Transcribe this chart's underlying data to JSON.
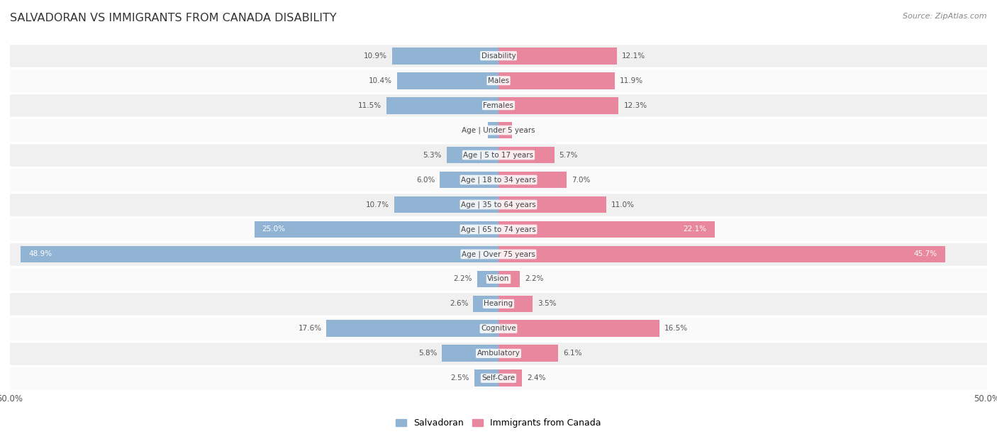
{
  "title": "SALVADORAN VS IMMIGRANTS FROM CANADA DISABILITY",
  "source": "Source: ZipAtlas.com",
  "categories": [
    "Disability",
    "Males",
    "Females",
    "Age | Under 5 years",
    "Age | 5 to 17 years",
    "Age | 18 to 34 years",
    "Age | 35 to 64 years",
    "Age | 65 to 74 years",
    "Age | Over 75 years",
    "Vision",
    "Hearing",
    "Cognitive",
    "Ambulatory",
    "Self-Care"
  ],
  "salvadoran": [
    10.9,
    10.4,
    11.5,
    1.1,
    5.3,
    6.0,
    10.7,
    25.0,
    48.9,
    2.2,
    2.6,
    17.6,
    5.8,
    2.5
  ],
  "canada": [
    12.1,
    11.9,
    12.3,
    1.4,
    5.7,
    7.0,
    11.0,
    22.1,
    45.7,
    2.2,
    3.5,
    16.5,
    6.1,
    2.4
  ],
  "salvadoran_color": "#92b4d4",
  "canada_color": "#e8879e",
  "salvadoran_label": "Salvadoran",
  "canada_label": "Immigrants from Canada",
  "axis_max": 50.0,
  "fig_bg": "#ffffff",
  "row_bg_odd": "#f0f0f0",
  "row_bg_even": "#fafafa"
}
